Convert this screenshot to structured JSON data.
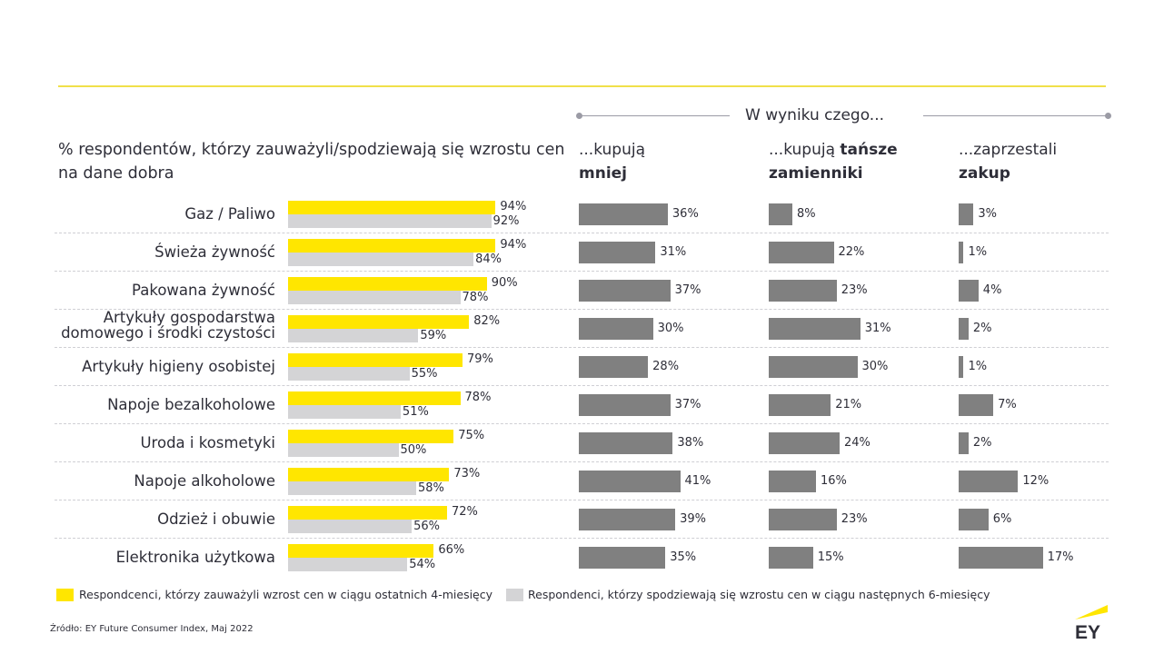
{
  "header": {
    "section_title": "W wyniku czego...",
    "left_title": "% respondentów, którzy zauważyli/spodziewają  się wzrostu cen na dane dobra",
    "columns": [
      {
        "prefix": "...kupują",
        "bold": "mniej"
      },
      {
        "prefix": "...kupują ",
        "bold_inline": "tańsze",
        "bold": "zamienniki"
      },
      {
        "prefix": "...zaprzestali",
        "bold": "zakup"
      }
    ]
  },
  "legend": [
    {
      "label": "Respondcenci, którzy zauważyli wzrost cen w ciągu ostatnich 4-miesięcy",
      "color": "#ffe600"
    },
    {
      "label": "Respondenci, którzy spodziewają się wzrostu cen w ciągu następnych 6-miesięcy",
      "color": "#d4d4d6"
    }
  ],
  "source": "Źródło: EY Future Consumer Index, Maj 2022",
  "logo": {
    "text": "EY",
    "accent": "#ffe600"
  },
  "colors": {
    "yellow": "#ffe600",
    "gray": "#d4d4d6",
    "dark": "#808080",
    "rule": "#f0e04a"
  },
  "chart_data": [
    {
      "type": "bar",
      "orientation": "horizontal",
      "title": "% respondentów, którzy zauważyli/spodziewają  się wzrostu cen na dane dobra",
      "categories": [
        "Gaz / Paliwo",
        "Świeża żywność",
        "Pakowana żywność",
        "Artykuły gospodarstwa domowego i środki czystości",
        "Artykuły higieny osobistej",
        "Napoje bezalkoholowe",
        "Uroda i kosmetyki",
        "Napoje alkoholowe",
        "Odzież i obuwie",
        "Elektronika użytkowa"
      ],
      "category_lines": [
        [
          "Gaz / Paliwo"
        ],
        [
          "Świeża żywność"
        ],
        [
          "Pakowana żywność"
        ],
        [
          "Artykuły gospodarstwa",
          "domowego i środki czystości"
        ],
        [
          "Artykuły higieny osobistej"
        ],
        [
          "Napoje bezalkoholowe"
        ],
        [
          "Uroda i kosmetyki"
        ],
        [
          "Napoje alkoholowe"
        ],
        [
          "Odzież i obuwie"
        ],
        [
          "Elektronika użytkowa"
        ]
      ],
      "series": [
        {
          "name": "Respondcenci, którzy zauważyli wzrost cen w ciągu ostatnich 4-miesięcy",
          "values": [
            94,
            94,
            90,
            82,
            79,
            78,
            75,
            73,
            72,
            66
          ],
          "labels": [
            "94%",
            "94%",
            "90%",
            "82%",
            "79%",
            "78%",
            "75%",
            "73%",
            "72%",
            "66%"
          ]
        },
        {
          "name": "Respondenci, którzy spodziewają się wzrostu cen w ciągu następnych 6-miesięcy",
          "values": [
            92,
            84,
            78,
            59,
            55,
            51,
            50,
            58,
            56,
            54
          ],
          "labels": [
            "92%",
            "84%",
            "78%",
            "59%",
            "55%",
            "51%",
            "50%",
            "58%",
            "56%",
            "54%"
          ]
        }
      ],
      "unit": "%",
      "xlim": [
        0,
        100
      ]
    },
    {
      "type": "bar",
      "orientation": "horizontal",
      "title": "...kupują mniej",
      "values": [
        36,
        31,
        37,
        30,
        28,
        37,
        38,
        41,
        39,
        35
      ],
      "labels": [
        "36%",
        "31%",
        "37%",
        "30%",
        "28%",
        "37%",
        "38%",
        "41%",
        "39%",
        "35%"
      ],
      "unit": "%"
    },
    {
      "type": "bar",
      "orientation": "horizontal",
      "title": "...kupują tańsze zamienniki",
      "values": [
        8,
        22,
        23,
        31,
        30,
        21,
        24,
        16,
        23,
        15
      ],
      "labels": [
        "8%",
        "22%",
        "23%",
        "31%",
        "30%",
        "21%",
        "24%",
        "16%",
        "23%",
        "15%"
      ],
      "unit": "%"
    },
    {
      "type": "bar",
      "orientation": "horizontal",
      "title": "...zaprzestali zakup",
      "values": [
        3,
        1,
        4,
        2,
        1,
        7,
        2,
        12,
        6,
        17
      ],
      "labels": [
        "3%",
        "1%",
        "4%",
        "2%",
        "1%",
        "7%",
        "2%",
        "12%",
        "6%",
        "17%"
      ],
      "unit": "%"
    }
  ]
}
